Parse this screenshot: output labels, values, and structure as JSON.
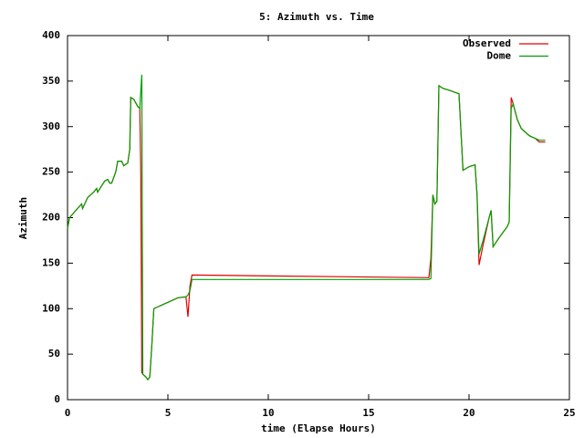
{
  "chart_data": {
    "type": "line",
    "title": "5: Azimuth vs. Time",
    "xlabel": "time (Elapse Hours)",
    "ylabel": "Azimuth",
    "x": [
      0,
      0.1,
      0.5,
      0.7,
      0.75,
      1.0,
      1.3,
      1.45,
      1.5,
      1.7,
      1.85,
      2.0,
      2.1,
      2.2,
      2.4,
      2.5,
      2.7,
      2.8,
      3.0,
      3.1,
      3.15,
      3.3,
      3.5,
      3.6,
      3.65,
      3.7,
      3.75,
      3.9,
      4.0,
      4.1,
      4.2,
      4.3,
      4.5,
      5.0,
      5.5,
      5.9,
      6.0,
      6.1,
      6.2,
      10,
      18,
      18.1,
      18.2,
      18.3,
      18.4,
      18.5,
      18.7,
      19.0,
      19.5,
      19.7,
      20.0,
      20.3,
      20.4,
      20.5,
      20.7,
      21.0,
      21.1,
      21.2,
      21.5,
      21.9,
      22.0,
      22.1,
      22.2,
      22.4,
      22.6,
      23.0,
      23.3,
      23.5,
      23.8
    ],
    "series": [
      {
        "name": "Observed",
        "color": "#e00000",
        "values": [
          188,
          200,
          210,
          215,
          210,
          222,
          228,
          232,
          228,
          235,
          240,
          242,
          238,
          238,
          250,
          262,
          262,
          257,
          260,
          275,
          332,
          330,
          322,
          320,
          248,
          30,
          28,
          25,
          22,
          25,
          60,
          100,
          102,
          107,
          112,
          113,
          91,
          125,
          137,
          136,
          134,
          155,
          225,
          215,
          218,
          345,
          342,
          340,
          336,
          252,
          256,
          258,
          225,
          148,
          170,
          200,
          208,
          168,
          178,
          190,
          195,
          332,
          325,
          308,
          298,
          290,
          287,
          283,
          283
        ]
      },
      {
        "name": "Dome",
        "color": "#00a000",
        "values": [
          188,
          200,
          210,
          215,
          210,
          222,
          228,
          232,
          228,
          235,
          240,
          242,
          238,
          238,
          250,
          262,
          262,
          257,
          260,
          275,
          332,
          330,
          322,
          320,
          340,
          357,
          28,
          25,
          22,
          25,
          60,
          100,
          102,
          107,
          112,
          113,
          115,
          120,
          132,
          132,
          132,
          133,
          225,
          215,
          218,
          345,
          342,
          340,
          336,
          252,
          256,
          258,
          225,
          160,
          175,
          200,
          208,
          168,
          178,
          190,
          195,
          320,
          325,
          308,
          298,
          290,
          287,
          285,
          285
        ]
      }
    ],
    "xlim": [
      0,
      25
    ],
    "xticks": [
      0,
      5,
      10,
      15,
      20,
      25
    ],
    "ylim": [
      0,
      400
    ],
    "yticks": [
      0,
      50,
      100,
      150,
      200,
      250,
      300,
      350,
      400
    ],
    "grid": false,
    "legend": "top-right"
  }
}
